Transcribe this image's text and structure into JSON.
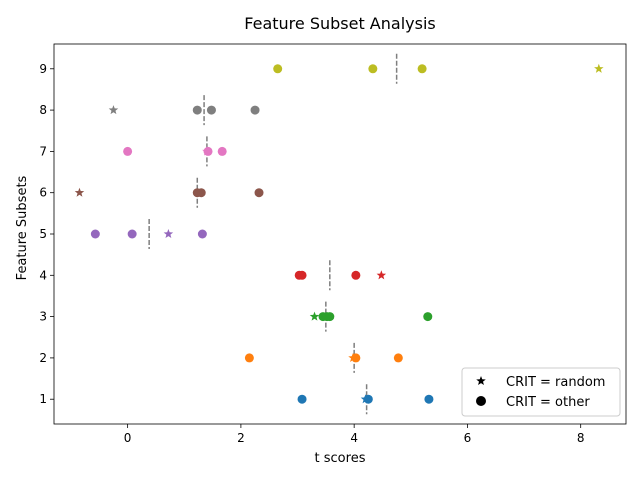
{
  "chart_data": {
    "type": "scatter",
    "title": "Feature Subset Analysis",
    "xlabel": "t scores",
    "ylabel": "Feature Subsets",
    "xlim": [
      -1.3,
      8.8
    ],
    "ylim": [
      0.4,
      9.6
    ],
    "xticks": [
      0,
      2,
      4,
      6,
      8
    ],
    "yticks": [
      1,
      2,
      3,
      4,
      5,
      6,
      7,
      8,
      9
    ],
    "legend": {
      "position": "lower-right",
      "entries": [
        {
          "label": "CRIT = random",
          "marker": "star"
        },
        {
          "label": "CRIT = other",
          "marker": "circle"
        }
      ]
    },
    "rows": [
      {
        "y": 1,
        "color": "#1f77b4",
        "random": [
          4.2
        ],
        "other": [
          3.08,
          4.25,
          5.32
        ],
        "threshold": 4.22
      },
      {
        "y": 2,
        "color": "#ff7f0e",
        "random": [
          3.98
        ],
        "other": [
          2.15,
          4.03,
          4.78
        ],
        "threshold": 4.0
      },
      {
        "y": 3,
        "color": "#2ca02c",
        "random": [
          3.3
        ],
        "other": [
          3.45,
          3.52,
          3.57,
          5.3
        ],
        "threshold": 3.5
      },
      {
        "y": 4,
        "color": "#d62728",
        "random": [
          4.48
        ],
        "other": [
          3.03,
          3.08,
          4.03
        ],
        "threshold": 3.57
      },
      {
        "y": 5,
        "color": "#9467bd",
        "random": [
          0.72
        ],
        "other": [
          -0.57,
          0.08,
          1.32
        ],
        "threshold": 0.38
      },
      {
        "y": 6,
        "color": "#8c564b",
        "random": [
          -0.85
        ],
        "other": [
          1.23,
          1.3,
          2.32
        ],
        "threshold": 1.23
      },
      {
        "y": 7,
        "color": "#e377c2",
        "random": [
          1.4
        ],
        "other": [
          0.0,
          1.42,
          1.67
        ],
        "threshold": 1.4
      },
      {
        "y": 8,
        "color": "#7f7f7f",
        "random": [
          -0.25
        ],
        "other": [
          1.23,
          1.48,
          2.25
        ],
        "threshold": 1.35
      },
      {
        "y": 9,
        "color": "#bcbd22",
        "random": [
          8.32
        ],
        "other": [
          2.65,
          4.33,
          5.2
        ],
        "threshold": 4.75
      }
    ]
  }
}
